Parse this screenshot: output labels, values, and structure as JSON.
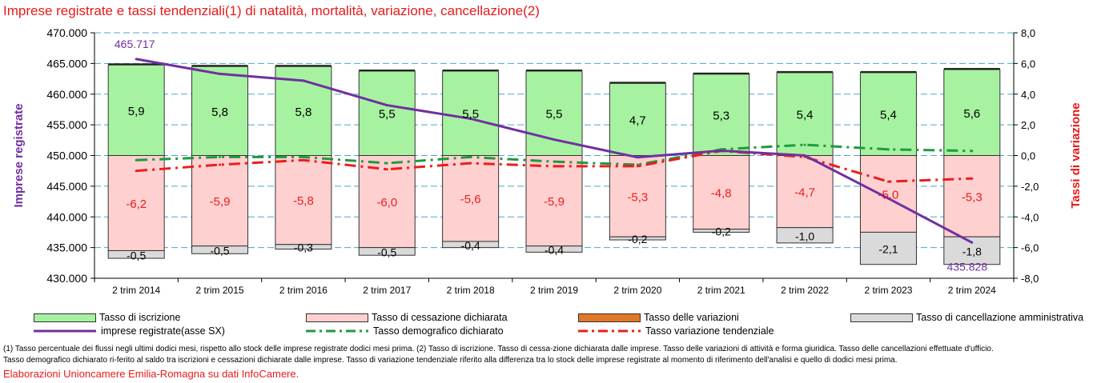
{
  "title": "Imprese registrate e tassi tendenziali(1) di natalità, mortalità, variazione, cancellazione(2)",
  "colors": {
    "iscrizione": "#a6f2a0",
    "cessazione": "#ffd0d0",
    "variazioni": "#e07828",
    "cancellazione": "#dadada",
    "imprese": "#7030a0",
    "demografico": "#1e9a40",
    "variazione_tendenziale": "#ee1c1c",
    "title": "#e8191b",
    "grid": "#4aa8c8"
  },
  "chart_data": {
    "type": "bar+line",
    "categories": [
      "2 trim 2014",
      "2 trim 2015",
      "2 trim 2016",
      "2 trim 2017",
      "2 trim 2018",
      "2 trim 2019",
      "2 trim 2020",
      "2 trim 2021",
      "2 trim 2022",
      "2 trim 2023",
      "2 trim 2024"
    ],
    "left_axis": {
      "label": "Imprese registrate",
      "min": 430000,
      "max": 470000,
      "step": 5000,
      "ticks": [
        "430.000",
        "435.000",
        "440.000",
        "445.000",
        "450.000",
        "455.000",
        "460.000",
        "465.000",
        "470.000"
      ]
    },
    "right_axis": {
      "label": "Tassi di variazione",
      "min": -8,
      "max": 8,
      "step": 2,
      "ticks": [
        "-8,0",
        "-6,0",
        "-4,0",
        "-2,0",
        "0,0",
        "2,0",
        "4,0",
        "6,0",
        "8,0"
      ]
    },
    "series": [
      {
        "name": "Tasso di iscrizione",
        "kind": "bar",
        "axis": "right",
        "values": [
          5.9,
          5.8,
          5.8,
          5.5,
          5.5,
          5.5,
          4.7,
          5.3,
          5.4,
          5.4,
          5.6
        ],
        "labels": [
          "5,9",
          "5,8",
          "5,8",
          "5,5",
          "5,5",
          "5,5",
          "4,7",
          "5,3",
          "5,4",
          "5,4",
          "5,6"
        ]
      },
      {
        "name": "Tasso di cessazione dichiarata",
        "kind": "bar",
        "axis": "right",
        "values": [
          -6.2,
          -5.9,
          -5.8,
          -6.0,
          -5.6,
          -5.9,
          -5.3,
          -4.8,
          -4.7,
          -5.0,
          -5.3
        ],
        "labels": [
          "-6,2",
          "-5,9",
          "-5,8",
          "-6,0",
          "-5,6",
          "-5,9",
          "-5,3",
          "-4,8",
          "-4,7",
          "-5,0",
          "-5,3"
        ]
      },
      {
        "name": "Tasso delle variazioni",
        "kind": "bar",
        "axis": "right",
        "values": [
          0.1,
          0.1,
          0.1,
          0.1,
          0.1,
          0.1,
          0.1,
          0.1,
          0.1,
          0.1,
          0.1
        ]
      },
      {
        "name": "Tasso di cancellazione amministrativa",
        "kind": "bar",
        "axis": "right",
        "values": [
          -0.5,
          -0.5,
          -0.3,
          -0.5,
          -0.4,
          -0.4,
          -0.2,
          -0.2,
          -1.0,
          -2.1,
          -1.8
        ],
        "labels": [
          "-0,5",
          "-0,5",
          "-0,3",
          "-0,5",
          "-0,4",
          "-0,4",
          "-0,2",
          "-0,2",
          "-1,0",
          "-2,1",
          "-1,8"
        ]
      },
      {
        "name": "imprese registrate(asse SX)",
        "kind": "line",
        "axis": "left",
        "values": [
          465717,
          463300,
          462200,
          458200,
          456000,
          452600,
          449700,
          450800,
          450000,
          443000,
          435828
        ],
        "labels": [
          "465.717",
          "",
          "",
          "",
          "",
          "",
          "",
          "",
          "",
          "",
          "435.828"
        ]
      },
      {
        "name": "Tasso demografico dichiarato",
        "kind": "line",
        "axis": "right",
        "values": [
          -0.3,
          -0.1,
          -0.1,
          -0.5,
          -0.1,
          -0.4,
          -0.6,
          0.4,
          0.7,
          0.4,
          0.3
        ]
      },
      {
        "name": "Tasso variazione tendenziale",
        "kind": "line",
        "axis": "right",
        "values": [
          -1.0,
          -0.6,
          -0.3,
          -0.9,
          -0.5,
          -0.7,
          -0.7,
          0.3,
          -0.1,
          -1.7,
          -1.5
        ]
      }
    ]
  },
  "legend": {
    "iscrizione": "Tasso di iscrizione",
    "cessazione": "Tasso di cessazione dichiarata",
    "variazioni": "Tasso delle variazioni",
    "cancellazione": "Tasso di cancellazione amministrativa",
    "imprese": "imprese registrate(asse SX)",
    "demografico": "Tasso demografico dichiarato",
    "variazione_tendenziale": "Tasso variazione tendenziale"
  },
  "notes": {
    "line1": "(1) Tasso percentuale dei flussi negli ultimi dodici mesi, rispetto allo stock delle imprese registrate dodici mesi prima. (2) Tasso di iscrizione. Tasso di cessa-zione dichiarata dalle imprese. Tasso delle variazioni di attività e forma giuridica. Tasso delle cancellazioni effettuate d'ufficio.",
    "line2": "Tasso demografico dichiarato ri-ferito al saldo tra iscrizioni e cessazioni dichiarate dalle imprese. Tasso di variazione tendenziale riferito alla differenza tra lo stock delle imprese registrate al momento di riferimento dell'analisi e quello di dodici mesi prima."
  },
  "source": "Elaborazioni Unioncamere Emilia-Romagna su dati InfoCamere."
}
